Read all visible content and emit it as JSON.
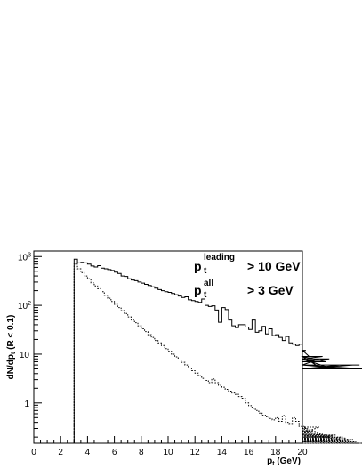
{
  "chart_data": {
    "type": "histogram",
    "title": "",
    "xlabel": {
      "main": "p",
      "sub": "t",
      "rest": " (GeV)"
    },
    "ylabel": {
      "a": "dN/dp",
      "sub": "t",
      "b": " (R < 0.1)"
    },
    "xlim": [
      0,
      20
    ],
    "ylim": [
      0.15,
      1300
    ],
    "yscale": "log",
    "grid": false,
    "x_ticks": [
      "0",
      "2",
      "4",
      "6",
      "8",
      "10",
      "12",
      "14",
      "16",
      "18",
      "20"
    ],
    "y_ticks": [
      {
        "value": 1,
        "base": "1",
        "exp": ""
      },
      {
        "value": 10,
        "base": "10",
        "exp": ""
      },
      {
        "value": 100,
        "base": "10",
        "exp": "2"
      },
      {
        "value": 1000,
        "base": "10",
        "exp": "3"
      }
    ],
    "annotations": [
      {
        "main": "p",
        "sub": "t",
        "sup": "leading",
        "rest": "> 10 GeV"
      },
      {
        "main": "p",
        "sub": "t",
        "sup": "all",
        "rest": ">   3 GeV"
      }
    ],
    "bin_width": 0.25,
    "bin_start": 3.0,
    "series": [
      {
        "style": "solid",
        "color": "#000000",
        "values": [
          880,
          740,
          760,
          740,
          700,
          640,
          610,
          650,
          580,
          560,
          540,
          520,
          480,
          450,
          400,
          390,
          350,
          330,
          320,
          300,
          285,
          270,
          255,
          240,
          225,
          210,
          200,
          190,
          185,
          175,
          165,
          155,
          145,
          150,
          130,
          125,
          120,
          115,
          135,
          100,
          95,
          98,
          80,
          45,
          90,
          82,
          50,
          38,
          35,
          40,
          40,
          36,
          32,
          50,
          28,
          30,
          37,
          26,
          33,
          24,
          25,
          22,
          19,
          23,
          17,
          16,
          15,
          16,
          11,
          12,
          9,
          9,
          6,
          8,
          9,
          7,
          8,
          5,
          5,
          6,
          6,
          6,
          5,
          6,
          6,
          6,
          5,
          5
        ]
      },
      {
        "style": "dotted",
        "color": "#000000",
        "values": [
          700,
          560,
          470,
          400,
          350,
          290,
          250,
          220,
          190,
          160,
          140,
          120,
          105,
          90,
          78,
          68,
          58,
          50,
          44,
          38,
          33,
          29,
          25,
          22,
          19,
          17,
          15,
          13,
          11.5,
          10,
          8.8,
          7.6,
          6.8,
          6.0,
          5.2,
          4.6,
          4.1,
          3.6,
          3.2,
          2.9,
          2.6,
          3.1,
          2.6,
          2.3,
          2.1,
          1.9,
          1.75,
          1.6,
          1.5,
          1.35,
          1.25,
          1.0,
          0.88,
          0.78,
          0.7,
          0.62,
          0.56,
          0.52,
          0.48,
          0.45,
          0.5,
          0.42,
          0.55,
          0.4,
          0.38,
          0.5,
          0.42,
          0.33,
          0.36,
          0.3,
          0.27,
          0.26,
          0.24,
          0.32,
          0.23,
          0.22,
          0.2,
          0.21,
          0.22,
          0.18,
          0.2,
          0.19,
          0.17,
          0.18,
          0.16,
          0.15,
          0.15
        ]
      }
    ],
    "cutoff_line": {
      "x": 3.0
    }
  }
}
